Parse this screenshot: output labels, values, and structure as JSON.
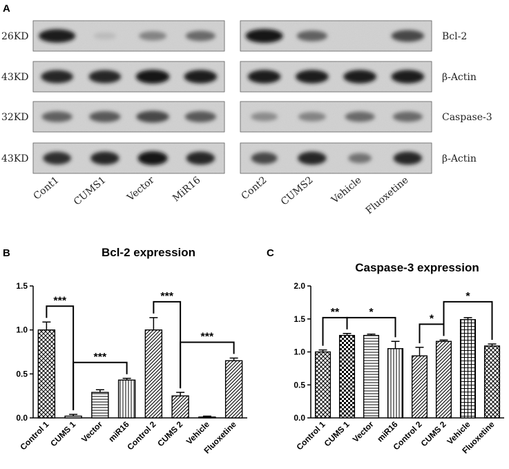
{
  "panel_a": {
    "letter": "A",
    "blots": [
      {
        "left_label": "26KD",
        "right_label": "Bcl-2"
      },
      {
        "left_label": "43KD",
        "right_label": "β-Actin"
      },
      {
        "left_label": "32KD",
        "right_label": "Caspase-3"
      },
      {
        "left_label": "43KD",
        "right_label": "β-Actin"
      }
    ],
    "lanes": [
      "Cont1",
      "CUMS1",
      "Vector",
      "MiR16",
      "Cont2",
      "CUMS2",
      "Vehicle",
      "Fluoxetine"
    ]
  },
  "chart_data": [
    {
      "panel": "B",
      "type": "bar",
      "title": "Bcl-2 expression",
      "categories": [
        "Control 1",
        "CUMS 1",
        "Vector",
        "miR16",
        "Control 2",
        "CUMS 2",
        "Vehicle",
        "Fluoxetine"
      ],
      "values": [
        1.0,
        0.02,
        0.29,
        0.43,
        1.0,
        0.25,
        0.01,
        0.65
      ],
      "errors": [
        0.09,
        0.02,
        0.03,
        0.02,
        0.14,
        0.04,
        0.01,
        0.03
      ],
      "patterns": [
        "crosshatch",
        "horizontal",
        "horizontal",
        "vertical",
        "diagonal",
        "diagonal",
        "diagonal",
        "diagonal"
      ],
      "ylim": [
        0,
        1.5
      ],
      "yticks": [
        "0.0",
        "0.5",
        "1.0",
        "1.5"
      ],
      "comparisons": [
        {
          "from": 0,
          "to": 1,
          "label": "***"
        },
        {
          "from": 1,
          "to": 3,
          "label": "***"
        },
        {
          "from": 4,
          "to": 5,
          "label": "***"
        },
        {
          "from": 5,
          "to": 7,
          "label": "***"
        }
      ]
    },
    {
      "panel": "C",
      "type": "bar",
      "title": "Caspase-3 expression",
      "categories": [
        "Control 1",
        "CUMS 1",
        "Vector",
        "miR16",
        "Control 2",
        "CUMS 2",
        "Vehicle",
        "Fluoxetine"
      ],
      "values": [
        1.0,
        1.25,
        1.25,
        1.05,
        0.94,
        1.16,
        1.49,
        1.09
      ],
      "errors": [
        0.03,
        0.03,
        0.02,
        0.11,
        0.13,
        0.02,
        0.03,
        0.03
      ],
      "patterns": [
        "crosshatch",
        "checker",
        "horizontal",
        "vertical",
        "diagonal",
        "diagonal",
        "grid",
        "crosshatch"
      ],
      "ylim": [
        0,
        2.0
      ],
      "yticks": [
        "0.0",
        "0.5",
        "1.0",
        "1.5",
        "2.0"
      ],
      "comparisons": [
        {
          "from": 0,
          "to": 1,
          "label": "**"
        },
        {
          "from": 1,
          "to": 3,
          "label": "*"
        },
        {
          "from": 4,
          "to": 5,
          "label": "*"
        },
        {
          "from": 5,
          "to": 7,
          "label": "*"
        }
      ]
    }
  ]
}
